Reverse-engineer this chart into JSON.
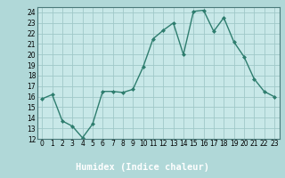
{
  "x": [
    0,
    1,
    2,
    3,
    4,
    5,
    6,
    7,
    8,
    9,
    10,
    11,
    12,
    13,
    14,
    15,
    16,
    17,
    18,
    19,
    20,
    21,
    22,
    23
  ],
  "y": [
    15.8,
    16.2,
    13.7,
    13.2,
    12.1,
    13.4,
    16.5,
    16.5,
    16.4,
    16.7,
    18.8,
    21.5,
    22.3,
    23.0,
    20.0,
    24.1,
    24.2,
    22.2,
    23.5,
    21.2,
    19.8,
    17.7,
    16.5,
    16.0
  ],
  "line_color": "#2e7d6e",
  "marker": "D",
  "marker_size": 2.0,
  "bg_color": "#b0d8d8",
  "plot_bg_color": "#c8e8e8",
  "grid_color": "#a0c8c8",
  "xlabel": "Humidex (Indice chaleur)",
  "xlabel_bar_color": "#4a7a7a",
  "xlabel_text_color": "#ffffff",
  "ylim": [
    12,
    24.5
  ],
  "xlim": [
    -0.5,
    23.5
  ],
  "yticks": [
    12,
    13,
    14,
    15,
    16,
    17,
    18,
    19,
    20,
    21,
    22,
    23,
    24
  ],
  "xticks": [
    0,
    1,
    2,
    3,
    4,
    5,
    6,
    7,
    8,
    9,
    10,
    11,
    12,
    13,
    14,
    15,
    16,
    17,
    18,
    19,
    20,
    21,
    22,
    23
  ],
  "xlabel_fontsize": 7.5,
  "tick_fontsize": 5.5,
  "linewidth": 1.0
}
